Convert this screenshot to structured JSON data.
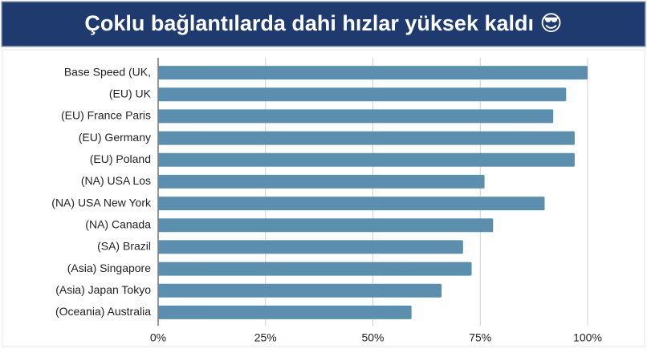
{
  "chart_data": {
    "type": "hbar",
    "title": "Çoklu bağlantılarda dahi hızlar yüksek kaldı 😎",
    "categories": [
      "Base Speed (UK,",
      "(EU) UK",
      "(EU) France Paris",
      "(EU) Germany",
      "(EU) Poland",
      "(NA) USA Los",
      "(NA) USA New York",
      "(NA) Canada",
      "(SA) Brazil",
      "(Asia) Singapore",
      "(Asia) Japan Tokyo",
      "(Oceania) Australia"
    ],
    "values": [
      100,
      95,
      92,
      97,
      97,
      76,
      90,
      78,
      71,
      73,
      66,
      59
    ],
    "color": "#5b8fad",
    "xlim": [
      0,
      100
    ],
    "xticks": [
      {
        "value": 0,
        "label": "0%"
      },
      {
        "value": 25,
        "label": "25%"
      },
      {
        "value": 50,
        "label": "50%"
      },
      {
        "value": 75,
        "label": "75%"
      },
      {
        "value": 100,
        "label": "100%"
      }
    ],
    "grid": true
  }
}
